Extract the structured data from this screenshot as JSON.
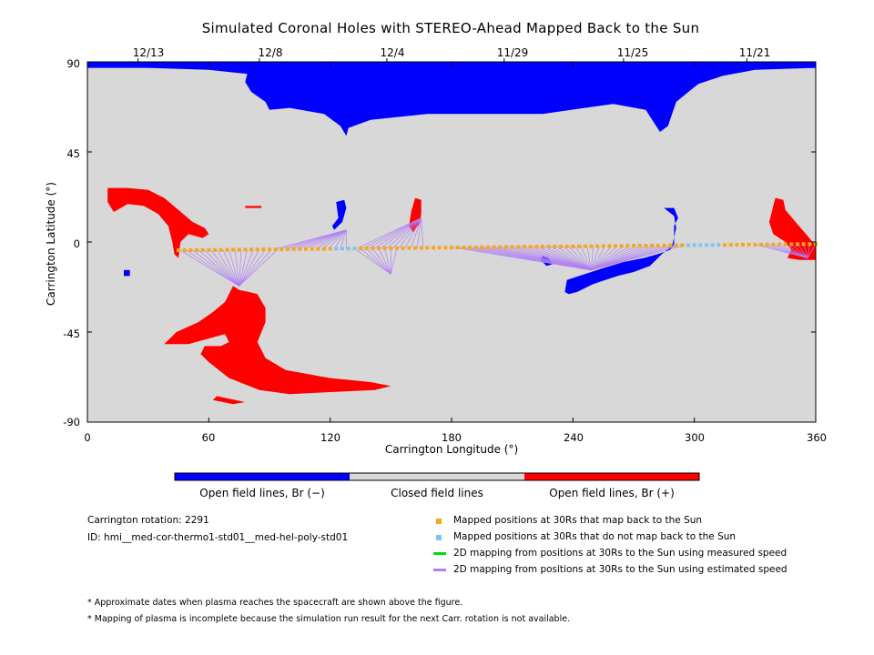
{
  "figure": {
    "title": "Simulated Coronal Holes with STEREO-Ahead Mapped Back to the Sun",
    "top_dates": [
      "12/13",
      "12/8",
      "12/4",
      "11/29",
      "11/25",
      "11/21"
    ]
  },
  "colorbar": {
    "labels": [
      "Open field lines, Br (−)",
      "Closed field lines",
      "Open field lines, Br (+)"
    ],
    "colors": [
      "#0000ff",
      "#d8d8d8",
      "#ff0000"
    ]
  },
  "info": {
    "rotation": "Carrington rotation: 2291",
    "id": "ID: hmi__med-cor-thermo1-std01__med-hel-poly-std01"
  },
  "legend": [
    {
      "label": "Mapped positions at 30Rs that map back to the Sun",
      "color": "#f5a623",
      "kind": "square"
    },
    {
      "label": "Mapped positions at 30Rs that do not map back to the Sun",
      "color": "#7ec4f0",
      "kind": "square"
    },
    {
      "label": "2D mapping from positions at 30Rs to the Sun using measured speed",
      "color": "#00dd00",
      "kind": "line"
    },
    {
      "label": "2D mapping from positions at 30Rs to the Sun using estimated speed",
      "color": "#b07ef5",
      "kind": "line"
    }
  ],
  "notes": [
    "* Approximate dates when plasma reaches the spacecraft are shown above the figure.",
    "* Mapping of plasma is incomplete because the simulation run result for the next Carr. rotation is not available."
  ],
  "chart_data": {
    "type": "map",
    "xlabel": "Carrington Longitude (°)",
    "ylabel": "Carrington Latitude (°)",
    "xlim": [
      0,
      360
    ],
    "ylim": [
      -90,
      90
    ],
    "xticks": [
      0,
      60,
      120,
      180,
      240,
      300,
      360
    ],
    "yticks": [
      90,
      45,
      0,
      -45,
      -90
    ],
    "top_date_longitudes": [
      25,
      85,
      148,
      206,
      265,
      326
    ],
    "background_color": "#d8d8d8",
    "regions": [
      {
        "polarity": "negative",
        "color": "#0000ff",
        "points": [
          [
            0,
            90
          ],
          [
            360,
            90
          ],
          [
            360,
            87
          ],
          [
            330,
            86
          ],
          [
            314,
            83
          ],
          [
            302,
            79
          ],
          [
            291,
            70
          ],
          [
            287,
            58
          ],
          [
            283,
            55
          ],
          [
            276,
            66
          ],
          [
            260,
            69
          ],
          [
            225,
            64
          ],
          [
            200,
            64
          ],
          [
            168,
            64
          ],
          [
            140,
            61
          ],
          [
            129,
            57
          ],
          [
            128,
            53
          ],
          [
            125,
            58
          ],
          [
            117,
            64
          ],
          [
            100,
            67
          ],
          [
            90,
            66
          ],
          [
            88,
            70
          ],
          [
            81,
            75
          ],
          [
            78,
            80
          ],
          [
            79,
            84
          ],
          [
            60,
            86
          ],
          [
            30,
            87
          ],
          [
            0,
            87
          ]
        ]
      },
      {
        "polarity": "negative",
        "color": "#0000ff",
        "points": [
          [
            285,
            17
          ],
          [
            290,
            17
          ],
          [
            292,
            12
          ],
          [
            290,
            8
          ],
          [
            290,
            -1
          ],
          [
            288,
            -4
          ],
          [
            282,
            -6
          ],
          [
            275,
            -8
          ],
          [
            265,
            -10
          ],
          [
            255,
            -13
          ],
          [
            243,
            -17
          ],
          [
            237,
            -19
          ],
          [
            236,
            -25
          ],
          [
            238,
            -26
          ],
          [
            242,
            -25
          ],
          [
            250,
            -21
          ],
          [
            262,
            -17
          ],
          [
            270,
            -15
          ],
          [
            278,
            -12
          ],
          [
            284,
            -6
          ],
          [
            289,
            -2
          ],
          [
            291,
            7
          ],
          [
            290,
            13
          ]
        ]
      },
      {
        "polarity": "negative",
        "color": "#0000ff",
        "points": [
          [
            123,
            20
          ],
          [
            127,
            21
          ],
          [
            128,
            17
          ],
          [
            126,
            10
          ],
          [
            122,
            6
          ],
          [
            121,
            8
          ],
          [
            124,
            12
          ]
        ]
      },
      {
        "polarity": "negative",
        "color": "#0000ff",
        "points": [
          [
            225,
            -7
          ],
          [
            228,
            -8
          ],
          [
            230,
            -11
          ],
          [
            227,
            -12
          ],
          [
            224,
            -9
          ]
        ]
      },
      {
        "polarity": "negative",
        "color": "#0000ff",
        "points": [
          [
            18,
            -14
          ],
          [
            21,
            -14
          ],
          [
            21,
            -17
          ],
          [
            18,
            -17
          ]
        ]
      },
      {
        "polarity": "positive",
        "color": "#ff0000",
        "points": [
          [
            10,
            27
          ],
          [
            20,
            27
          ],
          [
            30,
            26
          ],
          [
            38,
            22
          ],
          [
            45,
            16
          ],
          [
            52,
            10
          ],
          [
            58,
            7
          ],
          [
            60,
            4
          ],
          [
            57,
            2
          ],
          [
            50,
            4
          ],
          [
            46,
            0
          ],
          [
            45,
            -8
          ],
          [
            43,
            -6
          ],
          [
            42,
            0
          ],
          [
            40,
            8
          ],
          [
            35,
            14
          ],
          [
            28,
            18
          ],
          [
            20,
            19
          ],
          [
            13,
            15
          ],
          [
            10,
            20
          ]
        ]
      },
      {
        "polarity": "positive",
        "color": "#ff0000",
        "points": [
          [
            72,
            -22
          ],
          [
            75,
            -24
          ],
          [
            80,
            -25
          ],
          [
            84,
            -26
          ],
          [
            88,
            -33
          ],
          [
            88,
            -40
          ],
          [
            84,
            -50
          ],
          [
            88,
            -58
          ],
          [
            98,
            -64
          ],
          [
            120,
            -68
          ],
          [
            140,
            -70
          ],
          [
            150,
            -72
          ],
          [
            142,
            -74
          ],
          [
            120,
            -75
          ],
          [
            100,
            -76
          ],
          [
            85,
            -74
          ],
          [
            70,
            -68
          ],
          [
            60,
            -60
          ],
          [
            56,
            -56
          ],
          [
            58,
            -52
          ],
          [
            66,
            -52
          ],
          [
            70,
            -50
          ],
          [
            68,
            -46
          ],
          [
            50,
            -51
          ],
          [
            38,
            -51
          ],
          [
            44,
            -45
          ],
          [
            55,
            -40
          ],
          [
            62,
            -35
          ],
          [
            68,
            -30
          ]
        ]
      },
      {
        "polarity": "positive",
        "color": "#ff0000",
        "points": [
          [
            64,
            -77
          ],
          [
            78,
            -80
          ],
          [
            72,
            -81
          ],
          [
            62,
            -79
          ]
        ]
      },
      {
        "polarity": "positive",
        "color": "#ff0000",
        "points": [
          [
            162,
            22
          ],
          [
            165,
            21
          ],
          [
            165,
            14
          ],
          [
            164,
            9
          ],
          [
            161,
            5
          ],
          [
            159,
            8
          ],
          [
            160,
            15
          ]
        ]
      },
      {
        "polarity": "positive",
        "color": "#ff0000",
        "points": [
          [
            340,
            22
          ],
          [
            344,
            21
          ],
          [
            345,
            16
          ],
          [
            350,
            10
          ],
          [
            356,
            3
          ],
          [
            360,
            -2
          ],
          [
            360,
            -9
          ],
          [
            352,
            -9
          ],
          [
            346,
            -8
          ],
          [
            348,
            -4
          ],
          [
            345,
            0
          ],
          [
            339,
            4
          ],
          [
            337,
            10
          ]
        ]
      },
      {
        "polarity": "positive",
        "color": "#ff0000",
        "points": [
          [
            78,
            18
          ],
          [
            86,
            18
          ],
          [
            86,
            17
          ],
          [
            78,
            17
          ]
        ]
      }
    ],
    "mapped_points_lat": [
      -4.6,
      -1.0
    ],
    "mapped_points_lon_range": [
      45,
      360
    ],
    "mapped_points_step": 3,
    "nonmapping_lon_ranges": [
      [
        123,
        132
      ],
      [
        297,
        312
      ]
    ],
    "mapping_lines_estimated": [
      {
        "footpoint": [
          75,
          -22
        ],
        "from_lon": [
          46,
          94
        ]
      },
      {
        "footpoint": [
          128,
          6
        ],
        "from_lon": [
          92,
          128
        ]
      },
      {
        "footpoint": [
          165,
          12
        ],
        "from_lon": [
          133,
          168
        ]
      },
      {
        "footpoint": [
          150,
          -16
        ],
        "from_lon": [
          132,
          154
        ]
      },
      {
        "footpoint": [
          249,
          -14
        ],
        "from_lon": [
          181,
          296
        ]
      },
      {
        "footpoint": [
          356,
          -8
        ],
        "from_lon": [
          330,
          360
        ]
      }
    ],
    "mapping_lines_measured": []
  }
}
